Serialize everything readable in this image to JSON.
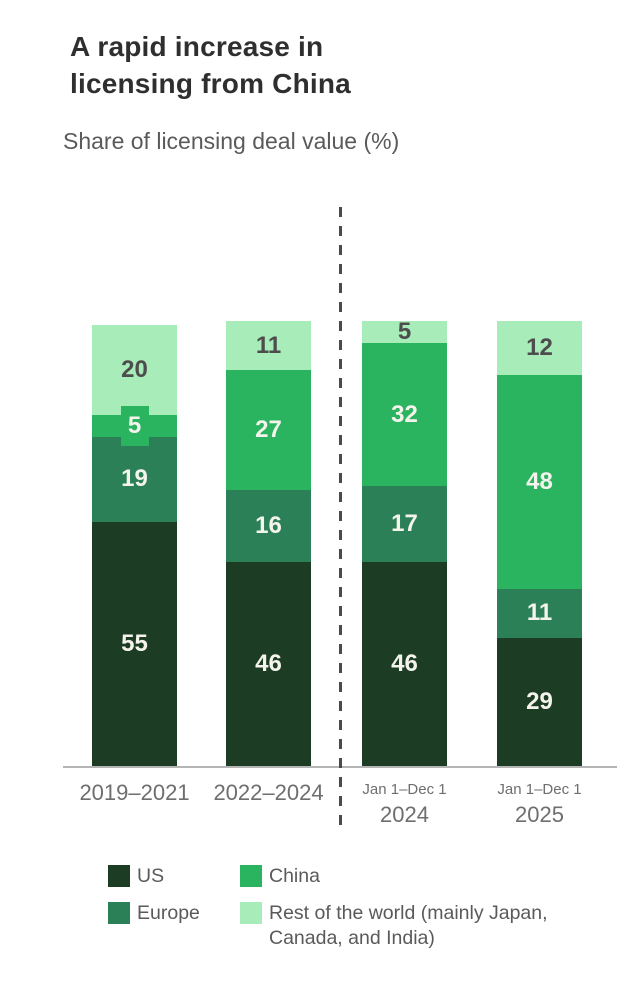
{
  "header": {
    "title_line1": "A rapid increase in",
    "title_line2": "licensing from China",
    "subtitle": "Share of licensing deal value (%)"
  },
  "chart_data": {
    "type": "bar",
    "variant": "stacked-vertical",
    "title": "A rapid increase in licensing from China",
    "subtitle": "Share of licensing deal value (%)",
    "unit": "%",
    "ylim": [
      0,
      100
    ],
    "grid": false,
    "legend_position": "bottom",
    "categories": [
      {
        "line1": "2019–2021",
        "line2": ""
      },
      {
        "line1": "2022–2024",
        "line2": ""
      },
      {
        "line1": "Jan 1–Dec 1",
        "line2": "2024"
      },
      {
        "line1": "Jan 1–Dec 1",
        "line2": "2025"
      }
    ],
    "stack_order_bottom_to_top": [
      "US",
      "Europe",
      "China",
      "Rest of the world"
    ],
    "series": [
      {
        "name": "US",
        "color": "#1c3c23",
        "label_color": "#f4f3ec",
        "values": [
          55,
          46,
          46,
          29
        ]
      },
      {
        "name": "Europe",
        "color": "#2b8058",
        "label_color": "#f4f3ec",
        "values": [
          19,
          16,
          17,
          11
        ]
      },
      {
        "name": "China",
        "color": "#2bb45f",
        "label_color": "#f4f3ec",
        "values": [
          5,
          27,
          32,
          48
        ]
      },
      {
        "name": "Rest of the world (mainly Japan, Canada, and India)",
        "color": "#a8ecb9",
        "label_color": "#4d4d4d",
        "values": [
          20,
          11,
          5,
          12
        ]
      }
    ],
    "divider": {
      "after_category_index": 1,
      "style": "dashed-vertical-line"
    }
  },
  "legend": {
    "items": [
      {
        "label": "US",
        "color": "#1c3c23"
      },
      {
        "label": "China",
        "color": "#2bb45f"
      },
      {
        "label": "Europe",
        "color": "#2b8058"
      },
      {
        "label": "Rest of the world (mainly Japan, Canada, and India)",
        "color": "#a8ecb9"
      }
    ]
  }
}
